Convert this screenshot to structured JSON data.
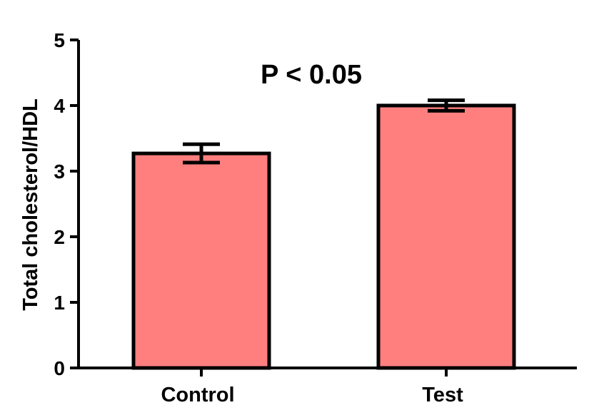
{
  "chart_data": {
    "type": "bar",
    "title": "",
    "xlabel": "",
    "ylabel": "Total cholesterol/HDL",
    "categories": [
      "Control",
      "Test"
    ],
    "values": [
      3.27,
      4.0
    ],
    "error": [
      0.14,
      0.08
    ],
    "ylim": [
      0,
      5
    ],
    "yticks": [
      "0",
      "1",
      "2",
      "3",
      "4",
      "5"
    ],
    "annotation": "P < 0.05",
    "grid": false,
    "bar_color": "#FF7F7F",
    "edge_color": "#000000"
  }
}
